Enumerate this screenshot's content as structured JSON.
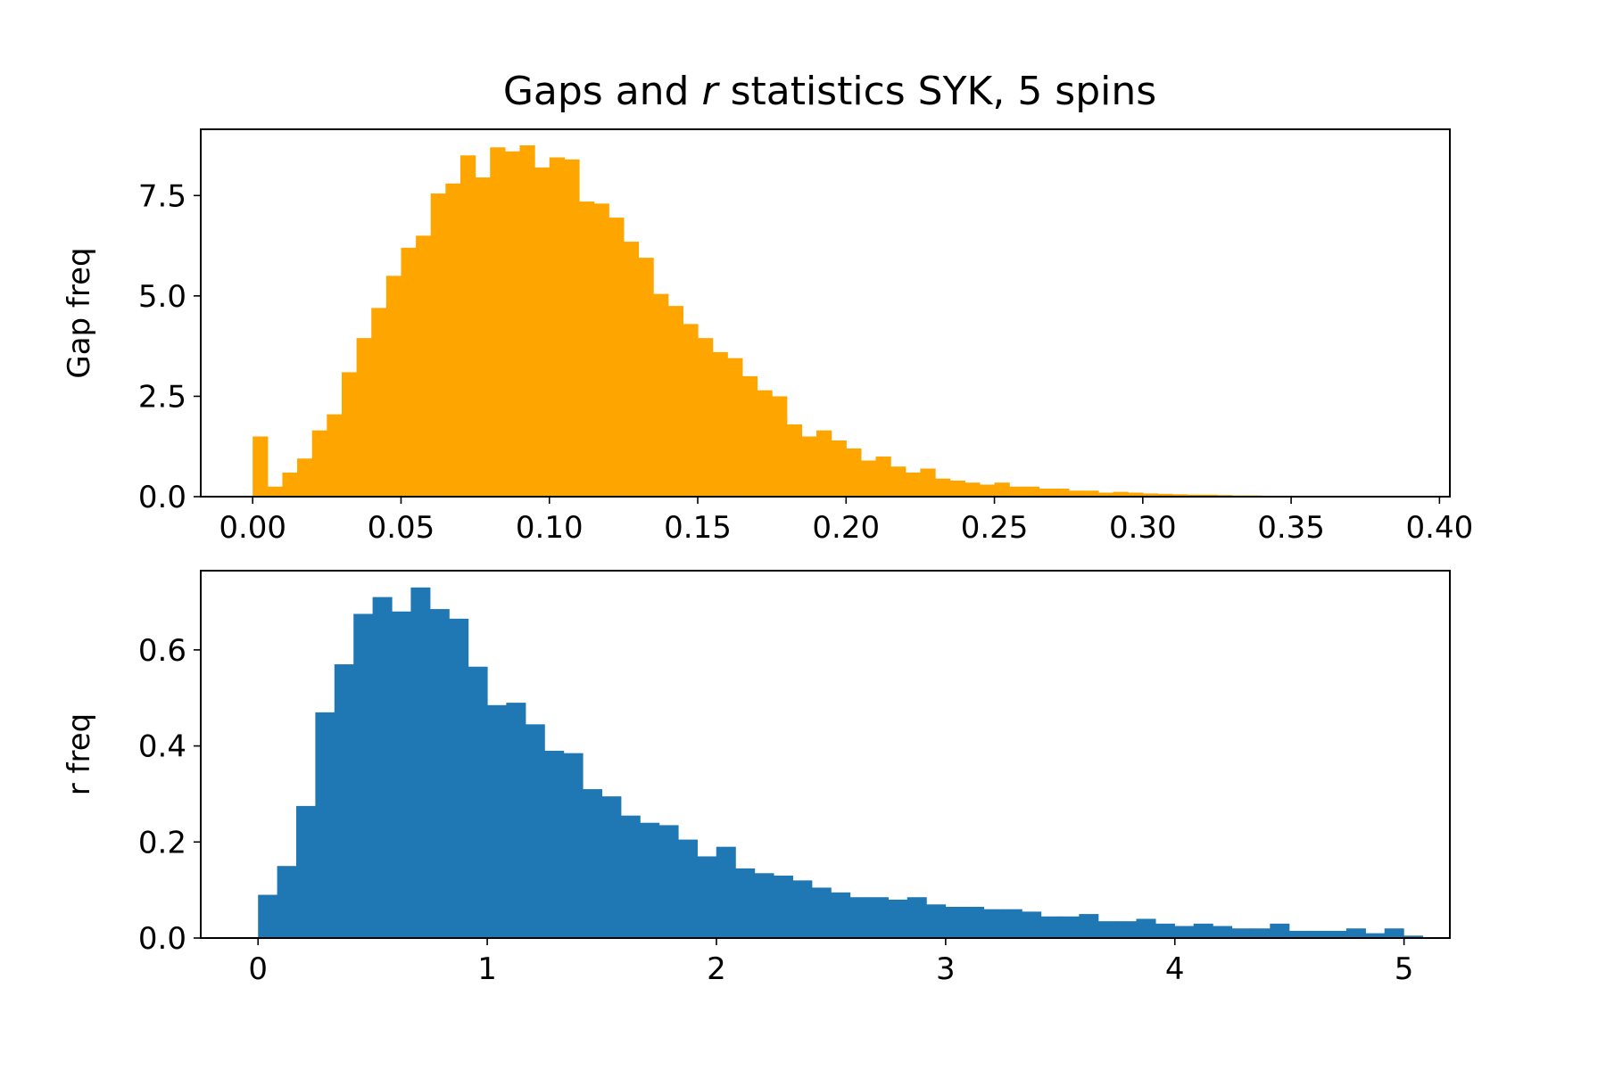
{
  "figure": {
    "title_prefix": "Gaps and ",
    "title_italic": "r",
    "title_suffix": " statistics SYK, 5 spins"
  },
  "chart_data": [
    {
      "type": "bar",
      "subtype": "histogram",
      "title": "Gaps and r statistics SYK, 5 spins",
      "ylabel": "Gap freq",
      "xlabel": "",
      "color": "#ffa500",
      "bin_start": 0.0,
      "bin_width": 0.005,
      "xlim": [
        -0.0175,
        0.4035
      ],
      "ylim": [
        0,
        9.15
      ],
      "xticks": [
        0.0,
        0.05,
        0.1,
        0.15,
        0.2,
        0.25,
        0.3,
        0.35,
        0.4
      ],
      "xtick_labels": [
        "0.00",
        "0.05",
        "0.10",
        "0.15",
        "0.20",
        "0.25",
        "0.30",
        "0.35",
        "0.40"
      ],
      "yticks": [
        0.0,
        2.5,
        5.0,
        7.5
      ],
      "ytick_labels": [
        "0.0",
        "2.5",
        "5.0",
        "7.5"
      ],
      "grid": false,
      "values": [
        1.5,
        0.25,
        0.6,
        0.95,
        1.65,
        2.05,
        3.1,
        3.95,
        4.7,
        5.5,
        6.2,
        6.5,
        7.55,
        7.8,
        8.5,
        7.95,
        8.7,
        8.6,
        8.75,
        8.2,
        8.45,
        8.4,
        7.35,
        7.3,
        6.95,
        6.35,
        5.95,
        5.05,
        4.75,
        4.3,
        3.95,
        3.6,
        3.45,
        3.0,
        2.65,
        2.5,
        1.8,
        1.5,
        1.65,
        1.4,
        1.2,
        0.9,
        1.0,
        0.75,
        0.6,
        0.7,
        0.45,
        0.4,
        0.35,
        0.3,
        0.35,
        0.25,
        0.25,
        0.2,
        0.2,
        0.15,
        0.15,
        0.1,
        0.12,
        0.1,
        0.08,
        0.07,
        0.06,
        0.05,
        0.05,
        0.04,
        0.03,
        0.03
      ]
    },
    {
      "type": "bar",
      "subtype": "histogram",
      "title": "",
      "ylabel": "r freq",
      "xlabel": "",
      "color": "#1f77b4",
      "bin_start": 0.0,
      "bin_width": 0.0833,
      "xlim": [
        -0.25,
        5.2
      ],
      "ylim": [
        0,
        0.765
      ],
      "xticks": [
        0,
        1,
        2,
        3,
        4,
        5
      ],
      "xtick_labels": [
        "0",
        "1",
        "2",
        "3",
        "4",
        "5"
      ],
      "yticks": [
        0.0,
        0.2,
        0.4,
        0.6
      ],
      "ytick_labels": [
        "0.0",
        "0.2",
        "0.4",
        "0.6"
      ],
      "grid": false,
      "values": [
        0.09,
        0.15,
        0.275,
        0.47,
        0.57,
        0.675,
        0.71,
        0.68,
        0.73,
        0.685,
        0.665,
        0.565,
        0.485,
        0.49,
        0.445,
        0.39,
        0.385,
        0.31,
        0.295,
        0.255,
        0.24,
        0.235,
        0.205,
        0.17,
        0.19,
        0.145,
        0.135,
        0.13,
        0.12,
        0.105,
        0.095,
        0.085,
        0.085,
        0.08,
        0.085,
        0.07,
        0.065,
        0.065,
        0.06,
        0.06,
        0.055,
        0.045,
        0.045,
        0.05,
        0.035,
        0.035,
        0.04,
        0.03,
        0.025,
        0.03,
        0.025,
        0.02,
        0.02,
        0.03,
        0.015,
        0.015,
        0.015,
        0.02,
        0.01,
        0.02,
        0.005
      ]
    }
  ]
}
